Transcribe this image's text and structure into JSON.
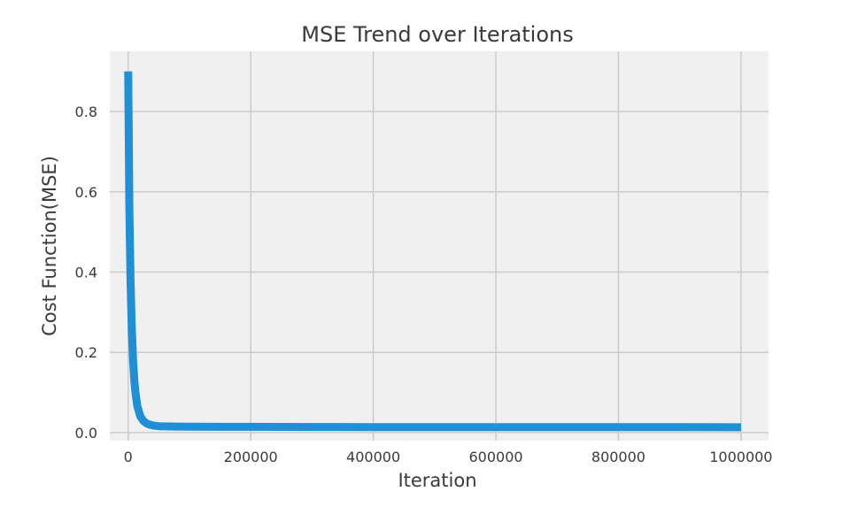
{
  "chart_data": {
    "type": "line",
    "title": "MSE Trend over Iterations",
    "xlabel": "Iteration",
    "ylabel": "Cost Function(MSE)",
    "xlim": [
      -30000,
      1045000
    ],
    "ylim": [
      -0.02,
      0.95
    ],
    "xticks": [
      0,
      200000,
      400000,
      600000,
      800000,
      1000000
    ],
    "xtick_labels": [
      "0",
      "200000",
      "400000",
      "600000",
      "800000",
      "1000000"
    ],
    "yticks": [
      0.0,
      0.2,
      0.4,
      0.6,
      0.8
    ],
    "ytick_labels": [
      "0.0",
      "0.2",
      "0.4",
      "0.6",
      "0.8"
    ],
    "grid": true,
    "colors": {
      "line": "#1f8fd6",
      "plot_bg": "#f0f0f0",
      "grid": "#cbcbcb"
    },
    "series": [
      {
        "x": [
          0,
          2000,
          4000,
          6000,
          8000,
          10000,
          12000,
          15000,
          20000,
          25000,
          30000,
          35000,
          40000,
          50000,
          60000,
          80000,
          100000,
          150000,
          200000,
          300000,
          400000,
          500000,
          600000,
          700000,
          800000,
          900000,
          1000000
        ],
        "y": [
          0.9,
          0.56,
          0.37,
          0.255,
          0.18,
          0.13,
          0.097,
          0.066,
          0.04,
          0.029,
          0.023,
          0.02,
          0.018,
          0.016,
          0.0155,
          0.015,
          0.0148,
          0.0145,
          0.0143,
          0.014,
          0.0138,
          0.0137,
          0.0136,
          0.0135,
          0.0134,
          0.0134,
          0.0133
        ]
      }
    ]
  }
}
